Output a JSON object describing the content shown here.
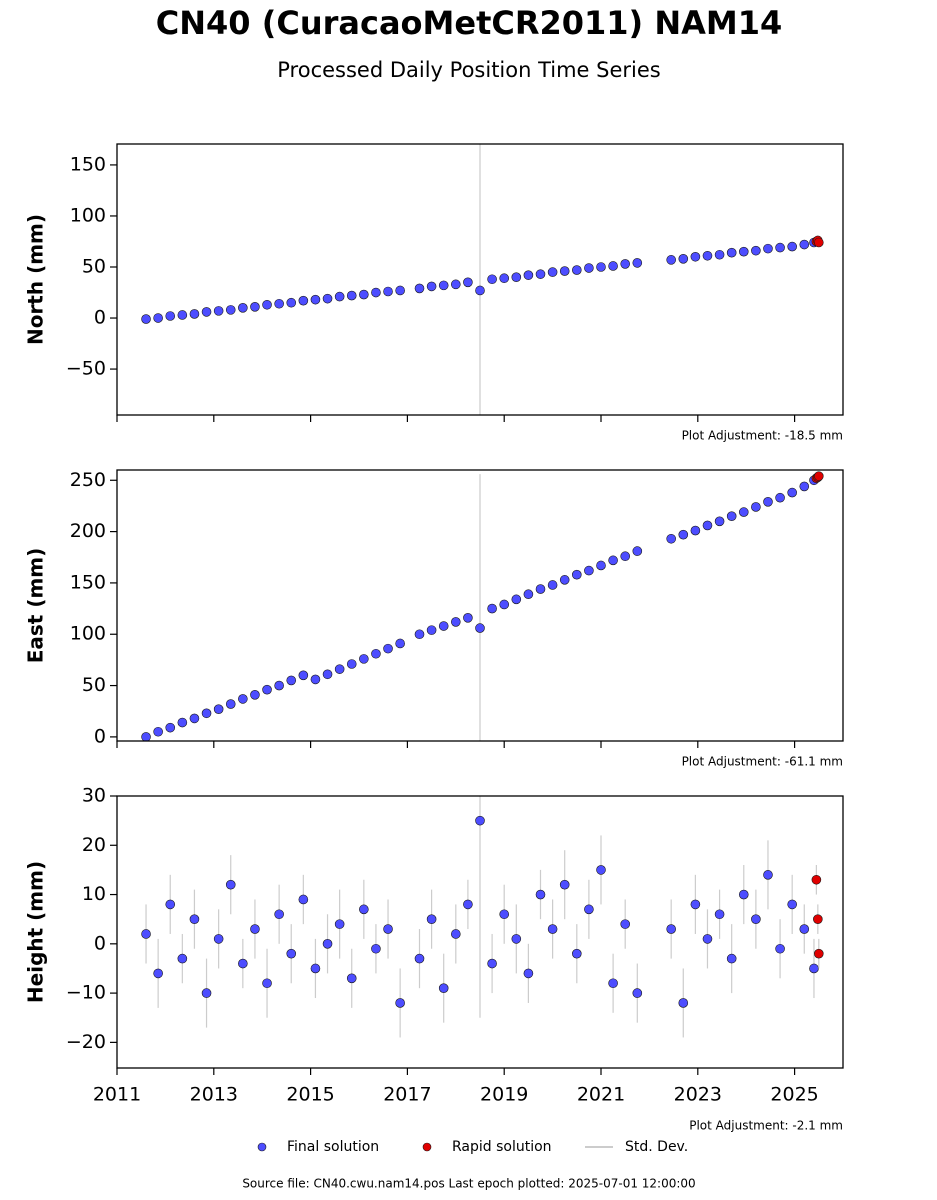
{
  "title": "CN40 (CuracaoMetCR2011) NAM14",
  "subtitle": "Processed Daily Position Time Series",
  "legend": {
    "std_dev": "Std. Dev.",
    "std_dev_color": "#bbbbbb"
  },
  "source": "Source file: CN40.cwu.nam14.pos  Last epoch plotted: 2025-07-01 12:00:00",
  "chart_data": [
    {
      "type": "scatter",
      "ylabel": "North (mm)",
      "annotation": "Plot Adjustment: -18.5 mm",
      "xlim": [
        2011,
        2026
      ],
      "ylim": [
        -95,
        170.5
      ],
      "yticks": [
        {
          "value": -50,
          "label": "−50"
        },
        0,
        50,
        100,
        150
      ],
      "series": [
        {
          "name": "Final solution",
          "color": "#4d4dff",
          "x": [
            2011.6,
            2011.85,
            2012.1,
            2012.35,
            2012.6,
            2012.85,
            2013.1,
            2013.35,
            2013.6,
            2013.85,
            2014.1,
            2014.35,
            2014.6,
            2014.85,
            2015.1,
            2015.35,
            2015.6,
            2015.85,
            2016.1,
            2016.35,
            2016.6,
            2016.85,
            2017.25,
            2017.5,
            2017.75,
            2018.0,
            2018.25,
            2018.5,
            2018.75,
            2019.0,
            2019.25,
            2019.5,
            2019.75,
            2020.0,
            2020.25,
            2020.5,
            2020.75,
            2021.0,
            2021.25,
            2021.5,
            2021.75,
            2022.45,
            2022.7,
            2022.95,
            2023.2,
            2023.45,
            2023.7,
            2023.95,
            2024.2,
            2024.45,
            2024.7,
            2024.95,
            2025.2,
            2025.4
          ],
          "values": [
            -1,
            0,
            2,
            3,
            4,
            6,
            7,
            8,
            10,
            11,
            13,
            14,
            15,
            17,
            18,
            19,
            21,
            22,
            23,
            25,
            26,
            27,
            29,
            31,
            32,
            33,
            35,
            27,
            38,
            39,
            40,
            42,
            43,
            45,
            46,
            47,
            49,
            50,
            51,
            53,
            54,
            57,
            58,
            60,
            61,
            62,
            64,
            65,
            66,
            68,
            69,
            70,
            72,
            74
          ],
          "errors": [
            1,
            1,
            1,
            1,
            1,
            1,
            1,
            1,
            1,
            1,
            1,
            1,
            1,
            1,
            1,
            1,
            1,
            1,
            1,
            1,
            1,
            1,
            1,
            1,
            1,
            1,
            1,
            150,
            1,
            1,
            1,
            1,
            1,
            1,
            1,
            1,
            1,
            1,
            1,
            1,
            1,
            1,
            1,
            1,
            1,
            1,
            1,
            1,
            1,
            1,
            1,
            1,
            1,
            1
          ]
        },
        {
          "name": "Rapid solution",
          "color": "#e00000",
          "x": [
            2025.45,
            2025.48,
            2025.5
          ],
          "values": [
            75,
            76,
            74
          ],
          "errors": [
            1,
            1,
            1
          ]
        }
      ]
    },
    {
      "type": "scatter",
      "ylabel": "East (mm)",
      "annotation": "Plot Adjustment: -61.1 mm",
      "xlim": [
        2011,
        2026
      ],
      "ylim": [
        -4,
        260
      ],
      "yticks": [
        0,
        50,
        100,
        150,
        200,
        250
      ],
      "series": [
        {
          "color": "#4d4dff",
          "x": [
            2011.6,
            2011.85,
            2012.1,
            2012.35,
            2012.6,
            2012.85,
            2013.1,
            2013.35,
            2013.6,
            2013.85,
            2014.1,
            2014.35,
            2014.6,
            2014.85,
            2015.1,
            2015.35,
            2015.6,
            2015.85,
            2016.1,
            2016.35,
            2016.6,
            2016.85,
            2017.25,
            2017.5,
            2017.75,
            2018.0,
            2018.25,
            2018.5,
            2018.75,
            2019.0,
            2019.25,
            2019.5,
            2019.75,
            2020.0,
            2020.25,
            2020.5,
            2020.75,
            2021.0,
            2021.25,
            2021.5,
            2021.75,
            2022.45,
            2022.7,
            2022.95,
            2023.2,
            2023.45,
            2023.7,
            2023.95,
            2024.2,
            2024.45,
            2024.7,
            2024.95,
            2025.2,
            2025.4
          ],
          "values": [
            0,
            5,
            9,
            14,
            18,
            23,
            27,
            32,
            37,
            41,
            46,
            50,
            55,
            60,
            56,
            61,
            66,
            71,
            76,
            81,
            86,
            91,
            100,
            104,
            108,
            112,
            116,
            106,
            125,
            129,
            134,
            139,
            144,
            148,
            153,
            158,
            162,
            167,
            172,
            176,
            181,
            193,
            197,
            201,
            206,
            210,
            215,
            219,
            224,
            229,
            233,
            238,
            244,
            250
          ],
          "errors": [
            1,
            1,
            1,
            1,
            1,
            1,
            1,
            1,
            1,
            1,
            1,
            1,
            1,
            1,
            1,
            1,
            1,
            1,
            1,
            1,
            1,
            1,
            1,
            1,
            1,
            1,
            1,
            150,
            1,
            1,
            1,
            1,
            1,
            1,
            1,
            1,
            1,
            1,
            1,
            1,
            1,
            1,
            1,
            1,
            1,
            1,
            1,
            1,
            1,
            1,
            1,
            1,
            1,
            1
          ]
        },
        {
          "color": "#e00000",
          "x": [
            2025.45,
            2025.48,
            2025.5
          ],
          "values": [
            252,
            253,
            254
          ],
          "errors": [
            1,
            1,
            1
          ]
        }
      ]
    },
    {
      "type": "scatter",
      "ylabel": "Height (mm)",
      "annotation": "Plot Adjustment: -2.1 mm",
      "xlim": [
        2011,
        2026
      ],
      "ylim": [
        -25.2,
        30
      ],
      "xticks": [
        2011,
        2013,
        2015,
        2017,
        2019,
        2021,
        2023,
        2025
      ],
      "yticks": [
        {
          "value": -20,
          "label": "−20"
        },
        {
          "value": -10,
          "label": "−10"
        },
        0,
        10,
        20,
        30
      ],
      "series": [
        {
          "color": "#4d4dff",
          "x": [
            2011.6,
            2011.85,
            2012.1,
            2012.35,
            2012.6,
            2012.85,
            2013.1,
            2013.35,
            2013.6,
            2013.85,
            2014.1,
            2014.35,
            2014.6,
            2014.85,
            2015.1,
            2015.35,
            2015.6,
            2015.85,
            2016.1,
            2016.35,
            2016.6,
            2016.85,
            2017.25,
            2017.5,
            2017.75,
            2018.0,
            2018.25,
            2018.5,
            2018.75,
            2019.0,
            2019.25,
            2019.5,
            2019.75,
            2020.0,
            2020.25,
            2020.5,
            2020.75,
            2021.0,
            2021.25,
            2021.5,
            2021.75,
            2022.45,
            2022.7,
            2022.95,
            2023.2,
            2023.45,
            2023.7,
            2023.95,
            2024.2,
            2024.45,
            2024.7,
            2024.95,
            2025.2,
            2025.4
          ],
          "values": [
            2,
            -6,
            8,
            -3,
            5,
            -10,
            1,
            12,
            -4,
            3,
            -8,
            6,
            -2,
            9,
            -5,
            0,
            4,
            -7,
            7,
            -1,
            3,
            -12,
            -3,
            5,
            -9,
            2,
            8,
            25,
            -4,
            6,
            1,
            -6,
            10,
            3,
            12,
            -2,
            7,
            15,
            -8,
            4,
            -10,
            3,
            -12,
            8,
            1,
            6,
            -3,
            10,
            5,
            14,
            -1,
            8,
            3,
            -5
          ],
          "errors": [
            6,
            7,
            6,
            5,
            6,
            7,
            6,
            6,
            5,
            6,
            7,
            6,
            6,
            5,
            6,
            6,
            7,
            6,
            6,
            5,
            6,
            7,
            6,
            6,
            7,
            6,
            5,
            40,
            6,
            6,
            7,
            6,
            5,
            6,
            7,
            6,
            6,
            7,
            6,
            5,
            6,
            6,
            7,
            6,
            6,
            5,
            7,
            6,
            6,
            7,
            6,
            6,
            5,
            6
          ]
        },
        {
          "color": "#e00000",
          "x": [
            2025.45,
            2025.48,
            2025.5
          ],
          "values": [
            13,
            5,
            -2
          ],
          "errors": [
            3,
            3,
            3
          ]
        }
      ]
    }
  ]
}
